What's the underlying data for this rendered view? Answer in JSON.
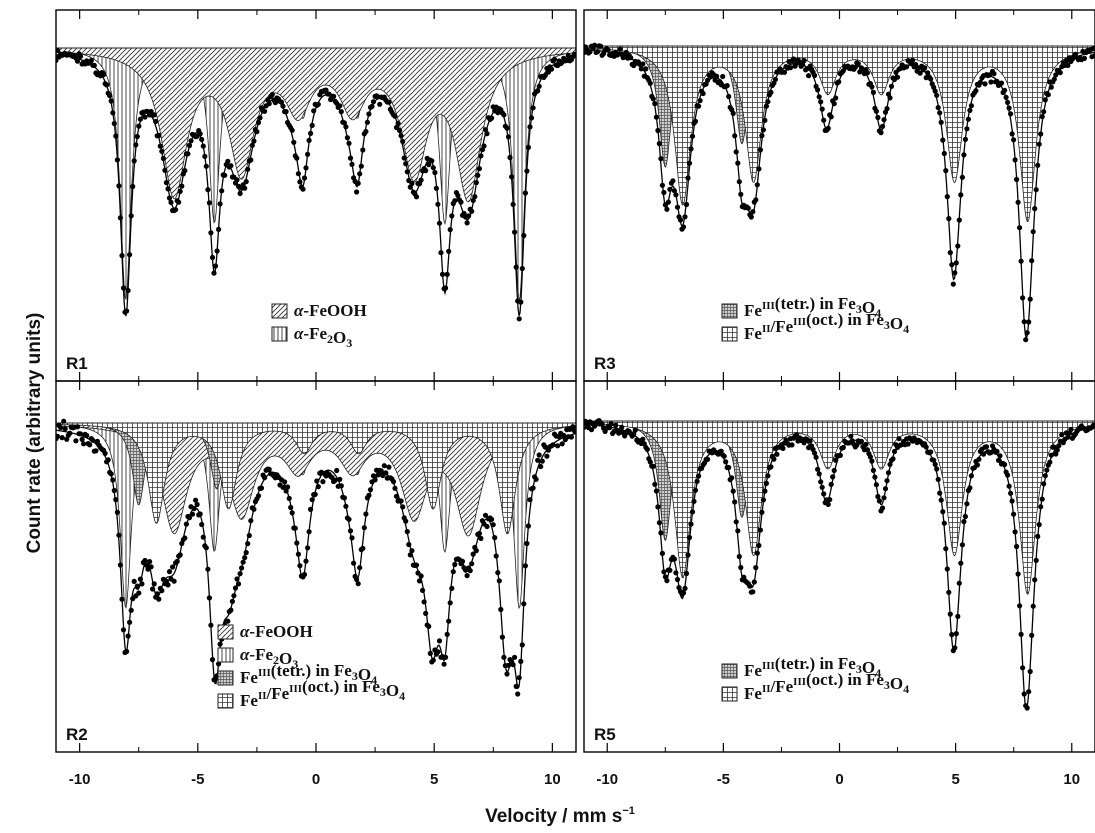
{
  "chart_data": {
    "type": "scatter",
    "xlabel": "Velocity / mm s",
    "xlabel_sup": "−1",
    "ylabel": "Count rate (arbitrary units)",
    "xlim": [
      -11,
      11
    ],
    "x_ticks": [
      "-10",
      "-5",
      "0",
      "5",
      "10"
    ],
    "grid": false,
    "components": {
      "goethite": {
        "sextet": [
          -8.05,
          -4.3,
          -0.55,
          1.75,
          5.45,
          8.6
        ],
        "depths": [
          1.0,
          0.69,
          0.27,
          0.27,
          0.69,
          1.0
        ],
        "width": 0.28
      },
      "hematite_like": {
        "sextet": [
          -6.0,
          -3.15,
          -0.75,
          1.55,
          4.15,
          6.45
        ],
        "depths": [
          0.57,
          0.47,
          0.22,
          0.22,
          0.47,
          0.57
        ],
        "width": 0.65
      },
      "tetrahedral": {
        "sextet": [
          -7.5,
          -4.2,
          -0.6,
          1.8,
          4.9,
          8.0
        ],
        "depths": [
          0.5,
          0.4,
          0.14,
          0.14,
          0.4,
          0.5
        ],
        "width": 0.32
      },
      "octahedral": {
        "sextet": [
          -6.75,
          -3.7,
          -0.5,
          1.8,
          4.95,
          8.1
        ],
        "depths": [
          0.65,
          0.55,
          0.18,
          0.18,
          0.55,
          0.72
        ],
        "width": 0.42
      }
    },
    "panels": [
      {
        "label": "R1",
        "legend": [
          {
            "pattern": "diag",
            "html": "α-FeOOH"
          },
          {
            "pattern": "vert",
            "html": "α-Fe2O3"
          }
        ],
        "mix": {
          "goethite": 1.0,
          "hematite_like": 1.0
        }
      },
      {
        "label": "R3",
        "legend": [
          {
            "pattern": "dense",
            "html": "FeIII(tetr.) in Fe3O4"
          },
          {
            "pattern": "grid",
            "html": "FeII/FeIII(oct.) in Fe3O4"
          }
        ],
        "mix": {
          "tetrahedral": 1.0,
          "octahedral": 1.0
        }
      },
      {
        "label": "R2",
        "legend": [
          {
            "pattern": "diag",
            "html": "α-FeOOH"
          },
          {
            "pattern": "vert",
            "html": "α-Fe2O3"
          },
          {
            "pattern": "dense",
            "html": "FeIII(tetr.) in Fe3O4"
          },
          {
            "pattern": "grid",
            "html": "FeII/FeIII(oct.) in Fe3O4"
          }
        ],
        "mix": {
          "goethite": 0.85,
          "hematite_like": 0.85,
          "tetrahedral": 0.75,
          "octahedral": 0.7
        }
      },
      {
        "label": "R5",
        "legend": [
          {
            "pattern": "dense",
            "html": "FeIII(tetr.) in Fe3O4"
          },
          {
            "pattern": "grid",
            "html": "FeII/FeIII(oct.) in Fe3O4"
          }
        ],
        "mix": {
          "tetrahedral": 1.0,
          "octahedral": 1.0
        }
      }
    ]
  }
}
